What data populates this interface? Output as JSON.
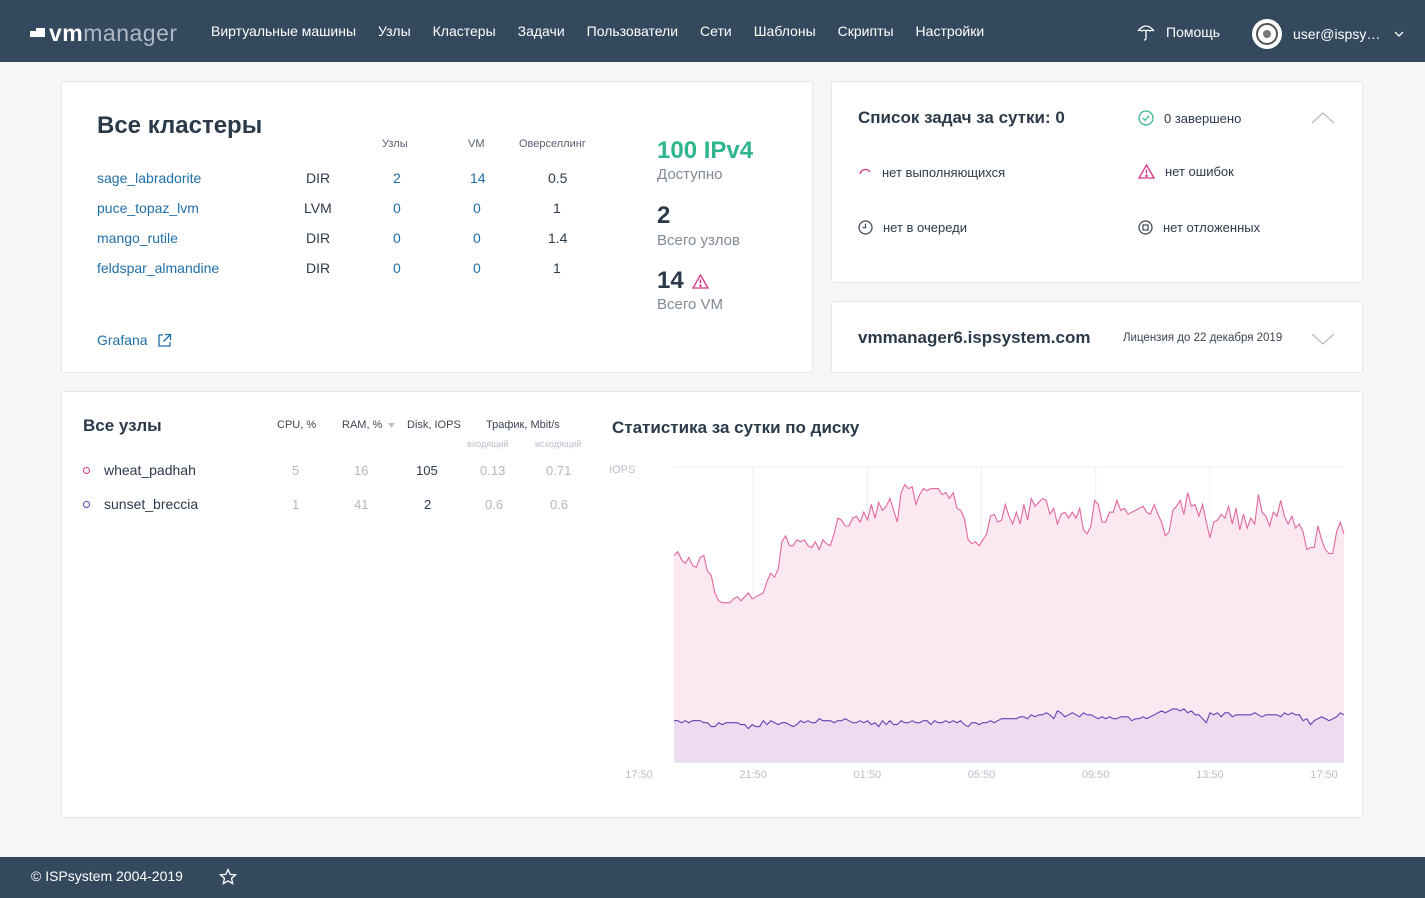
{
  "header": {
    "logo_bold": "vm",
    "logo_light": "manager",
    "nav": [
      "Виртуальные машины",
      "Узлы",
      "Кластеры",
      "Задачи",
      "Пользователи",
      "Сети",
      "Шаблоны",
      "Скрипты",
      "Настройки"
    ],
    "help_label": "Помощь",
    "help_icon": "umbrella-icon",
    "user_label": "user@ispsy…"
  },
  "clusters": {
    "title": "Все кластеры",
    "columns": [
      "Узлы",
      "VM",
      "Оверселлинг"
    ],
    "rows": [
      {
        "name": "sage_labradorite",
        "type": "DIR",
        "nodes": "2",
        "vm": "14",
        "overselling": "0.5"
      },
      {
        "name": "puce_topaz_lvm",
        "type": "LVM",
        "nodes": "0",
        "vm": "0",
        "overselling": "1"
      },
      {
        "name": "mango_rutile",
        "type": "DIR",
        "nodes": "0",
        "vm": "0",
        "overselling": "1.4"
      },
      {
        "name": "feldspar_almandine",
        "type": "DIR",
        "nodes": "0",
        "vm": "0",
        "overselling": "1"
      }
    ],
    "grafana_label": "Grafana",
    "stats": {
      "ipv4_value": "100 IPv4",
      "ipv4_label": "Доступно",
      "nodes_value": "2",
      "nodes_label": "Всего узлов",
      "vm_value": "14",
      "vm_label": "Всего VM"
    }
  },
  "tasks": {
    "title": "Список задач за сутки: 0",
    "done": "0 завершено",
    "running": "нет выполняющихся",
    "errors": "нет ошибок",
    "queue": "нет в очереди",
    "deferred": "нет отложенных"
  },
  "license": {
    "host": "vmmanager6.ispsystem.com",
    "date": "Лицензия до 22 декабря 2019"
  },
  "nodes": {
    "title": "Все узлы",
    "columns": {
      "cpu": "CPU, %",
      "ram": "RAM, %",
      "disk": "Disk, IOPS",
      "traffic": "Трафик, Mbit/s",
      "in": "входящий",
      "out": "исходящий"
    },
    "rows": [
      {
        "name": "wheat_padhah",
        "cpu": "5",
        "ram": "16",
        "disk": "105",
        "in": "0.13",
        "out": "0.71"
      },
      {
        "name": "sunset_breccia",
        "cpu": "1",
        "ram": "41",
        "disk": "2",
        "in": "0.6",
        "out": "0.6"
      }
    ]
  },
  "chart_data": {
    "type": "area",
    "title": "Статистика за сутки по диску",
    "ylabel": "IOPS",
    "x_ticks": [
      "17:50",
      "21:50",
      "01:50",
      "05:50",
      "09:50",
      "13:50",
      "17:50"
    ],
    "ylim": [
      0,
      150
    ],
    "colors": {
      "series1": "#e0679f",
      "series1_fill": "#fce8f1",
      "series2": "#6a3fb5",
      "series2_fill": "#ead8ef"
    },
    "series": [
      {
        "values": [
          105,
          107,
          103,
          101,
          104,
          100,
          99,
          104,
          105,
          97,
          95,
          86,
          82,
          81,
          81,
          81,
          83,
          84,
          82,
          84,
          86,
          83,
          84,
          85,
          86,
          92,
          96,
          94,
          98,
          112,
          115,
          110,
          110,
          113,
          112,
          113,
          110,
          109,
          112,
          108,
          113,
          111,
          110,
          116,
          124,
          123,
          120,
          120,
          124,
          125,
          122,
          127,
          123,
          131,
          124,
          132,
          128,
          130,
          134,
          128,
          122,
          137,
          141,
          139,
          140,
          131,
          136,
          139,
          138,
          139,
          139,
          139,
          136,
          137,
          134,
          137,
          129,
          128,
          124,
          113,
          111,
          112,
          110,
          113,
          116,
          125,
          126,
          122,
          123,
          131,
          125,
          121,
          127,
          121,
          131,
          123,
          134,
          130,
          132,
          134,
          133,
          126,
          129,
          121,
          126,
          127,
          124,
          127,
          124,
          129,
          118,
          116,
          120,
          133,
          131,
          122,
          122,
          127,
          127,
          133,
          128,
          129,
          126,
          127,
          128,
          129,
          130,
          127,
          126,
          131,
          126,
          122,
          115,
          117,
          128,
          130,
          133,
          126,
          137,
          130,
          131,
          125,
          131,
          122,
          114,
          122,
          123,
          126,
          124,
          130,
          121,
          129,
          118,
          126,
          119,
          124,
          121,
          136,
          127,
          125,
          120,
          127,
          125,
          133,
          125,
          121,
          125,
          119,
          121,
          117,
          108,
          109,
          109,
          120,
          113,
          108,
          106,
          106,
          117,
          122,
          116
        ]
      },
      {
        "values": [
          21,
          21,
          20,
          21,
          20,
          21,
          21,
          21,
          20,
          20,
          18,
          18,
          20,
          19,
          20,
          20,
          20,
          20,
          19,
          19,
          17,
          19,
          18,
          18,
          21,
          19,
          21,
          20,
          19,
          20,
          20,
          19,
          18,
          19,
          21,
          20,
          21,
          20,
          20,
          22,
          21,
          21,
          21,
          20,
          21,
          21,
          22,
          21,
          20,
          20,
          21,
          20,
          21,
          19,
          20,
          18,
          21,
          19,
          21,
          19,
          19,
          21,
          20,
          20,
          21,
          20,
          20,
          21,
          21,
          19,
          21,
          20,
          20,
          21,
          20,
          21,
          20,
          21,
          19,
          18,
          20,
          20,
          19,
          20,
          20,
          21,
          20,
          21,
          22,
          22,
          22,
          22,
          22,
          23,
          23,
          22,
          24,
          23,
          24,
          24,
          25,
          24,
          22,
          26,
          25,
          23,
          24,
          25,
          24,
          23,
          25,
          24,
          24,
          23,
          22,
          23,
          22,
          23,
          22,
          22,
          23,
          23,
          23,
          21,
          22,
          22,
          23,
          22,
          23,
          24,
          25,
          26,
          25,
          26,
          27,
          27,
          26,
          27,
          25,
          26,
          24,
          24,
          22,
          20,
          25,
          24,
          25,
          23,
          25,
          25,
          23,
          24,
          24,
          24,
          24,
          24,
          25,
          24,
          23,
          24,
          24,
          24,
          24,
          23,
          25,
          24,
          25,
          24,
          24,
          21,
          22,
          19,
          21,
          22,
          23,
          22,
          21,
          22,
          23,
          25,
          24
        ]
      }
    ]
  },
  "footer": {
    "copyright": "© ISPsystem 2004-2019"
  }
}
